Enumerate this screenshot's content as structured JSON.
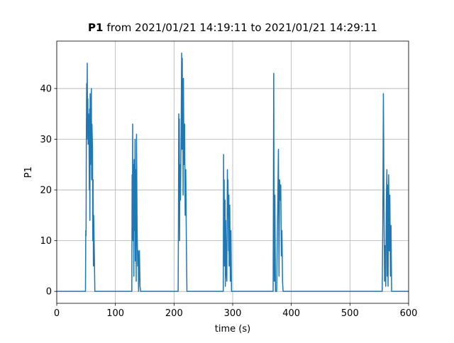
{
  "chart_data": {
    "type": "line",
    "title": {
      "bold": "P1",
      "rest": "from 2021/01/21 14:19:11 to 2021/01/21 14:29:11"
    },
    "x_label": "time (s)",
    "y_label": "P1",
    "color": "#1f77b4",
    "grid": true,
    "xlim": [
      0,
      600
    ],
    "xticks": [
      0,
      100,
      200,
      300,
      400,
      500,
      600
    ],
    "ylim": [
      -2.35,
      49.35
    ],
    "yticks": [
      0,
      10,
      20,
      30,
      40
    ],
    "x": [
      0,
      49,
      49.5,
      50,
      50.5,
      51,
      51.5,
      52,
      52.5,
      53,
      53.5,
      54,
      55,
      55.5,
      56,
      56.5,
      57,
      57.5,
      58,
      58.5,
      59,
      59.5,
      60,
      61,
      61.5,
      62,
      62.5,
      63,
      64,
      65,
      128,
      128.5,
      129,
      129.5,
      130,
      130.5,
      131,
      131.5,
      132,
      133,
      133.5,
      134,
      135,
      135.5,
      136,
      137,
      138,
      139,
      139.5,
      141,
      142,
      143,
      207,
      207.5,
      208,
      208.5,
      209,
      209.5,
      210,
      211,
      212,
      213,
      213.5,
      214,
      214.5,
      215,
      215.5,
      216,
      217,
      218,
      219,
      220,
      221,
      222,
      284,
      284.5,
      285,
      285.5,
      286,
      287,
      287.5,
      288,
      289,
      290,
      291,
      291.5,
      292,
      293,
      293.5,
      294,
      295,
      296,
      297,
      298,
      369,
      370,
      370.5,
      371,
      372,
      373,
      375,
      378,
      379,
      380,
      381,
      382,
      383,
      384,
      385,
      386,
      555,
      556,
      557,
      557.5,
      558,
      559,
      560,
      561,
      562,
      563,
      563.5,
      564,
      565,
      566,
      567,
      568,
      569,
      570,
      571,
      600
    ],
    "values": [
      0,
      0,
      12,
      11,
      32,
      41,
      30,
      45,
      33,
      38,
      29,
      35,
      31,
      20,
      36,
      14,
      39,
      25,
      38,
      30,
      40,
      22,
      33,
      28,
      10,
      22,
      5,
      15,
      8,
      0,
      0,
      23,
      13,
      33,
      10,
      25,
      19,
      3,
      26,
      12,
      30,
      6,
      24,
      2,
      31,
      13,
      5,
      8,
      0,
      8,
      1,
      0,
      0,
      13,
      35,
      21,
      34,
      10,
      25,
      18,
      30,
      47,
      28,
      46,
      35,
      41,
      19,
      42,
      25,
      33,
      15,
      24,
      10,
      0,
      0,
      27,
      12,
      22,
      5,
      18,
      1,
      14,
      4,
      2,
      24,
      15,
      22,
      8,
      19,
      5,
      17,
      2,
      12,
      0,
      0,
      43,
      20,
      2,
      19,
      0,
      0,
      28,
      3,
      22,
      18,
      21,
      7,
      12,
      2,
      0,
      0,
      13,
      39,
      30,
      17,
      2,
      9,
      1,
      18,
      24,
      3,
      21,
      1,
      23,
      8,
      19,
      3,
      13,
      0,
      0
    ]
  }
}
